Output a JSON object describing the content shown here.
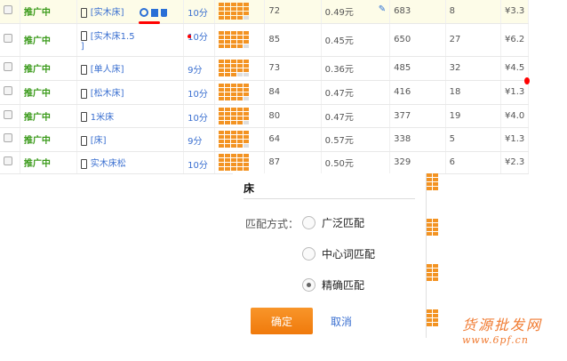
{
  "rows": [
    {
      "status": "推广中",
      "keyword": "[实木床]",
      "score": "10分",
      "quality": 19,
      "c1": "72",
      "price": "0.49元",
      "c2": "683",
      "c3": "8",
      "cost": "¥3.3"
    },
    {
      "status": "推广中",
      "keyword": "[实木床1.5",
      "keyword2": "]",
      "score": "10分",
      "quality": 19,
      "c1": "85",
      "price": "0.45元",
      "c2": "650",
      "c3": "27",
      "cost": "¥6.2"
    },
    {
      "status": "推广中",
      "keyword": "[单人床]",
      "score": "9分",
      "quality": 18,
      "c1": "73",
      "price": "0.36元",
      "c2": "485",
      "c3": "32",
      "cost": "¥4.5"
    },
    {
      "status": "推广中",
      "keyword": "[松木床]",
      "score": "10分",
      "quality": 19,
      "c1": "84",
      "price": "0.47元",
      "c2": "416",
      "c3": "18",
      "cost": "¥1.3"
    },
    {
      "status": "推广中",
      "keyword": "1米床",
      "score": "10分",
      "quality": 19,
      "c1": "80",
      "price": "0.47元",
      "c2": "377",
      "c3": "19",
      "cost": "¥4.0"
    },
    {
      "status": "推广中",
      "keyword": "[床]",
      "score": "9分",
      "quality": 19,
      "c1": "64",
      "price": "0.57元",
      "c2": "338",
      "c3": "5",
      "cost": "¥1.3"
    },
    {
      "status": "推广中",
      "keyword": "实木床松",
      "score": "10分",
      "quality": 20,
      "c1": "87",
      "price": "0.50元",
      "c2": "329",
      "c3": "6",
      "cost": "¥2.3"
    }
  ],
  "popup": {
    "title": "床",
    "match_label": "匹配方式：",
    "options": [
      "广泛匹配",
      "中心词匹配",
      "精确匹配"
    ],
    "selected": 2,
    "ok": "确定",
    "cancel": "取消"
  },
  "watermark": {
    "line1": "货源批发网",
    "line2": "www.6pf.cn"
  },
  "colors": {
    "accent": "#f39322",
    "status": "#3a9a1a",
    "link": "#3a6fd0"
  }
}
